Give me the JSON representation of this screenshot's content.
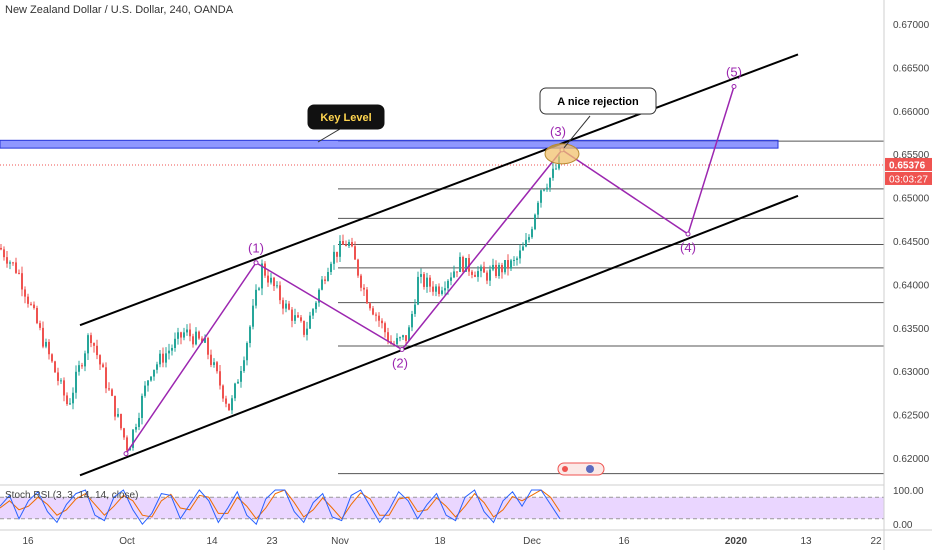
{
  "header": {
    "title": "New Zealand Dollar / U.S. Dollar, 240, OANDA"
  },
  "colors": {
    "up": "#26a69a",
    "down": "#ef5350",
    "wave": "#9c27b0",
    "channel": "#000000",
    "keylevel_fill": "#6a74ff",
    "keylevel_border": "#2535d9",
    "price_tag": "#ef5350",
    "rsi_band": "#e8d2ff",
    "k_line": "#2962ff",
    "d_line": "#ef6c00"
  },
  "chart_data": {
    "type": "candlestick",
    "symbol": "New Zealand Dollar / U.S. Dollar",
    "timeframe": "240",
    "source": "OANDA",
    "y_ticks": [
      "0.67000",
      "0.66500",
      "0.66000",
      "0.65500",
      "0.65000",
      "0.64500",
      "0.64000",
      "0.63500",
      "0.63000",
      "0.62500",
      "0.62000"
    ],
    "ylim": [
      0.6188,
      0.6718
    ],
    "x_ticks": [
      "16",
      "Oct",
      "14",
      "23",
      "Nov",
      "18",
      "Dec",
      "16",
      "2020",
      "13",
      "22"
    ],
    "last_price": "0.65376",
    "countdown": "03:03:27",
    "waypoints": [
      {
        "x": 0,
        "p": 0.6442
      },
      {
        "x": 18,
        "p": 0.6415
      },
      {
        "x": 40,
        "p": 0.6345
      },
      {
        "x": 68,
        "p": 0.626
      },
      {
        "x": 90,
        "p": 0.6345
      },
      {
        "x": 105,
        "p": 0.629
      },
      {
        "x": 128,
        "p": 0.621
      },
      {
        "x": 150,
        "p": 0.63
      },
      {
        "x": 185,
        "p": 0.6345
      },
      {
        "x": 205,
        "p": 0.633
      },
      {
        "x": 230,
        "p": 0.6255
      },
      {
        "x": 248,
        "p": 0.634
      },
      {
        "x": 262,
        "p": 0.642
      },
      {
        "x": 285,
        "p": 0.6375
      },
      {
        "x": 305,
        "p": 0.6345
      },
      {
        "x": 330,
        "p": 0.643
      },
      {
        "x": 348,
        "p": 0.645
      },
      {
        "x": 365,
        "p": 0.639
      },
      {
        "x": 392,
        "p": 0.633
      },
      {
        "x": 408,
        "p": 0.634
      },
      {
        "x": 418,
        "p": 0.6405
      },
      {
        "x": 438,
        "p": 0.6395
      },
      {
        "x": 460,
        "p": 0.6425
      },
      {
        "x": 485,
        "p": 0.641
      },
      {
        "x": 515,
        "p": 0.6425
      },
      {
        "x": 528,
        "p": 0.645
      },
      {
        "x": 540,
        "p": 0.651
      },
      {
        "x": 552,
        "p": 0.6525
      },
      {
        "x": 560,
        "p": 0.6542
      }
    ],
    "key_level": {
      "label": "Key Level",
      "price_top": 0.6566,
      "price_bottom": 0.6557
    },
    "fib_levels": [
      0.6565,
      0.651,
      0.6476,
      0.6446,
      0.6419,
      0.6379,
      0.6329,
      0.6182
    ],
    "channel": {
      "upper": [
        {
          "x": 80,
          "p": 0.6353
        },
        {
          "x": 798,
          "p": 0.6665
        }
      ],
      "lower": [
        {
          "x": 80,
          "p": 0.618
        },
        {
          "x": 798,
          "p": 0.6502
        }
      ]
    },
    "waves": [
      {
        "label": "",
        "x": 126,
        "p": 0.6205
      },
      {
        "label": "(1)",
        "x": 256,
        "p": 0.6425
      },
      {
        "label": "(2)",
        "x": 402,
        "p": 0.6325
      },
      {
        "label": "(3)",
        "x": 562,
        "p": 0.6555
      },
      {
        "label": "(4)",
        "x": 688,
        "p": 0.6458
      },
      {
        "label": "(5)",
        "x": 734,
        "p": 0.6628
      }
    ],
    "annotations": [
      {
        "text": "A nice rejection",
        "target": "(3)"
      },
      {
        "text": "Key Level",
        "target": "key_level"
      }
    ],
    "stoch_rsi": {
      "label": "Stoch RSI (3, 3, 14, 14, close)",
      "y_ticks": [
        "100.00",
        "0.00"
      ],
      "bands": [
        80,
        20
      ],
      "k": [
        55,
        85,
        20,
        70,
        95,
        40,
        10,
        60,
        90,
        100,
        30,
        15,
        80,
        100,
        45,
        5,
        35,
        90,
        85,
        20,
        60,
        100,
        70,
        10,
        50,
        95,
        30,
        5,
        75,
        100,
        100,
        40,
        10,
        65,
        90,
        25,
        15,
        85,
        100,
        55,
        10,
        45,
        95,
        70,
        20,
        60,
        90,
        30,
        15,
        80,
        100,
        40,
        10,
        70,
        95,
        55,
        100,
        100,
        60,
        20
      ],
      "d": [
        50,
        70,
        45,
        55,
        80,
        60,
        30,
        45,
        75,
        90,
        60,
        30,
        55,
        85,
        70,
        30,
        25,
        70,
        88,
        50,
        45,
        85,
        80,
        35,
        35,
        80,
        55,
        20,
        50,
        90,
        100,
        65,
        25,
        45,
        78,
        50,
        20,
        60,
        92,
        75,
        30,
        30,
        75,
        80,
        40,
        45,
        78,
        55,
        25,
        55,
        90,
        65,
        25,
        45,
        82,
        70,
        85,
        100,
        80,
        40
      ]
    }
  }
}
